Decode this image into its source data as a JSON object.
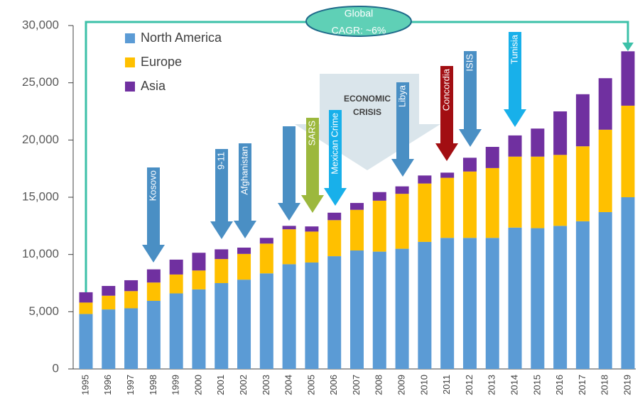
{
  "chart_data": {
    "type": "stacked-bar",
    "categories": [
      "1995",
      "1996",
      "1997",
      "1998",
      "1999",
      "2000",
      "2001",
      "2002",
      "2003",
      "2004",
      "2005",
      "2006",
      "2007",
      "2008",
      "2009",
      "2010",
      "2011",
      "2012",
      "2013",
      "2014",
      "2015",
      "2016",
      "2017",
      "2018",
      "2019"
    ],
    "series": [
      {
        "name": "North America",
        "color": "#5b9bd5",
        "values": [
          4800,
          5200,
          5300,
          5950,
          6600,
          6950,
          7500,
          7800,
          8350,
          9150,
          9300,
          9850,
          10350,
          10250,
          10500,
          11100,
          11450,
          11450,
          11450,
          12350,
          12300,
          12500,
          12900,
          13700,
          15000
        ]
      },
      {
        "name": "Europe",
        "color": "#ffc000",
        "values": [
          1000,
          1200,
          1500,
          1600,
          1650,
          1650,
          2100,
          2250,
          2600,
          3050,
          2700,
          3150,
          3550,
          4450,
          4800,
          5100,
          5250,
          5800,
          6100,
          6200,
          6250,
          6200,
          6550,
          7200,
          8000
        ]
      },
      {
        "name": "Asia",
        "color": "#7030a0",
        "values": [
          900,
          850,
          950,
          1150,
          1300,
          1550,
          850,
          550,
          500,
          300,
          450,
          650,
          600,
          750,
          650,
          700,
          450,
          1200,
          1850,
          1850,
          2450,
          3800,
          4550,
          4500,
          4750
        ]
      }
    ],
    "ylim": [
      0,
      30000
    ],
    "yticks": [
      0,
      {
        "value": 5000,
        "label": "5,000"
      },
      {
        "value": 10000,
        "label": "10,000"
      },
      {
        "value": 15000,
        "label": "15,000"
      },
      {
        "value": 20000,
        "label": "20,000"
      },
      {
        "value": 25000,
        "label": "25,000"
      },
      {
        "value": 30000,
        "label": "30,000"
      }
    ],
    "annotations": [
      {
        "text": "Kosovo",
        "color": "#4a8fc4"
      },
      {
        "text": "9-11",
        "color": "#4a8fc4"
      },
      {
        "text": "Afghanistan",
        "color": "#4a8fc4"
      },
      {
        "text": "SARS",
        "color": "#9cb83d"
      },
      {
        "text": "Mexican Crime",
        "color": "#18b0ea"
      },
      {
        "text": "Libya",
        "color": "#4a8fc4"
      },
      {
        "text": "Concordia",
        "color": "#a20e12"
      },
      {
        "text": "ISIS",
        "color": "#4a8fc4"
      },
      {
        "text": "Tunisia",
        "color": "#18b0ea"
      }
    ],
    "crisis_label": [
      "ECONOMIC",
      "CRISIS"
    ],
    "cagr_label": [
      "Global",
      "CAGR: ~6%"
    ]
  }
}
